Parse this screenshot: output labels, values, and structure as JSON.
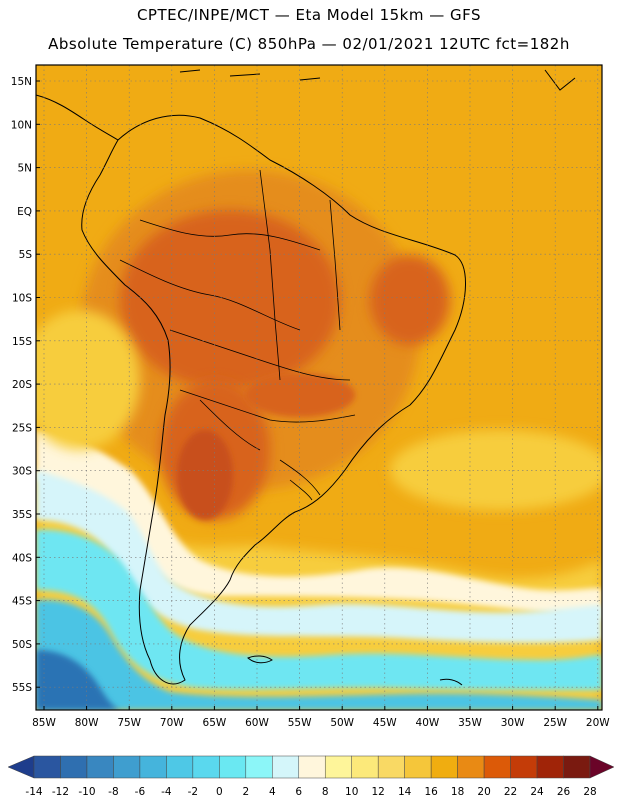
{
  "header": {
    "line1": "CPTEC/INPE/MCT —  Eta Model 15km — GFS",
    "line2": "Absolute Temperature (C) 850hPa — 02/01/2021 12UTC fct=182h"
  },
  "axes": {
    "lat_labels": [
      "15N",
      "10N",
      "5N",
      "EQ",
      "5S",
      "10S",
      "15S",
      "20S",
      "25S",
      "30S",
      "35S",
      "40S",
      "45S",
      "50S",
      "55S"
    ],
    "lon_labels": [
      "85W",
      "80W",
      "75W",
      "70W",
      "65W",
      "60W",
      "55W",
      "50W",
      "45W",
      "40W",
      "35W",
      "30W",
      "25W",
      "20W"
    ]
  },
  "colorbar": {
    "labels": [
      "-14",
      "-12",
      "-10",
      "-8",
      "-6",
      "-4",
      "-2",
      "0",
      "2",
      "4",
      "6",
      "8",
      "10",
      "12",
      "14",
      "16",
      "18",
      "20",
      "22",
      "24",
      "26",
      "28"
    ],
    "colors": [
      "#1e3d8c",
      "#2a56a0",
      "#2f6fb0",
      "#3987c0",
      "#3f9ecf",
      "#45b4dc",
      "#4ec8e6",
      "#5ad8ee",
      "#6ae8f2",
      "#8cf6f8",
      "#d4f6fa",
      "#fff6dc",
      "#fef59a",
      "#fce97a",
      "#f9d964",
      "#f5c63a",
      "#f0ad10",
      "#e98a14",
      "#dc5a08",
      "#c43c08",
      "#a02408",
      "#7a1a10",
      "#6a0428"
    ]
  },
  "colors": {
    "warm_base": "#f0ab14",
    "hot": "#e58d1a",
    "hotter": "#d8641a",
    "hottest": "#c8501a",
    "light": "#f7cd3c",
    "cool": "#fce68a",
    "cream": "#fff6dc",
    "pale_cyan": "#d6f5fa",
    "cyan": "#6ee6f2",
    "mid_cyan": "#4cc4e4",
    "blue": "#38a0d0",
    "deep_blue": "#2a73b4"
  }
}
